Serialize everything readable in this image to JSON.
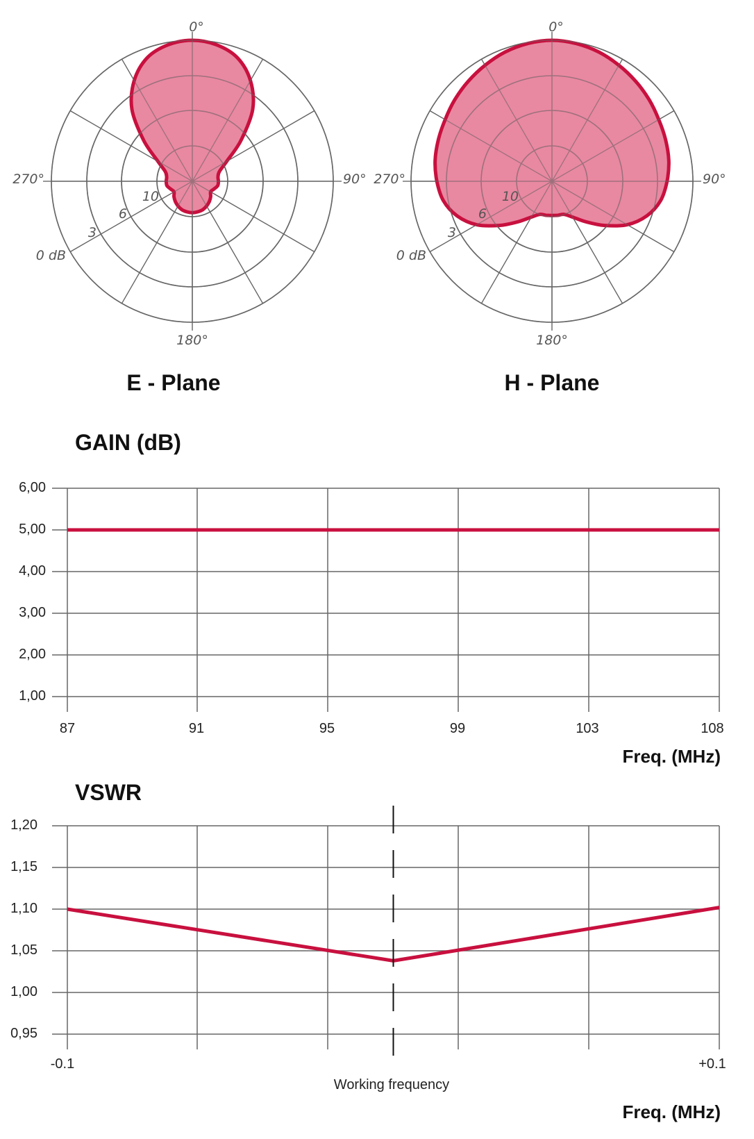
{
  "colors": {
    "pattern": "#c8103e",
    "pattern_fill": "#e8829c",
    "grid": "#666666"
  },
  "chart_data": [
    {
      "type": "polar",
      "title": "E - Plane",
      "angle_labels": [
        "0°",
        "90°",
        "180°",
        "270°"
      ],
      "radial_labels": [
        "0 dB",
        "3",
        "6",
        "10"
      ],
      "radial_levels_db": [
        0,
        -3,
        -6,
        -10
      ],
      "angle_deg": [
        0,
        10,
        20,
        30,
        40,
        50,
        60,
        70,
        80,
        90,
        100,
        110,
        120,
        130,
        140,
        150,
        160,
        170,
        180,
        190,
        200,
        210,
        220,
        230,
        240,
        250,
        260,
        270,
        280,
        290,
        300,
        310,
        320,
        330,
        340,
        350
      ],
      "gain_db": [
        0,
        -0.2,
        -0.8,
        -2.1,
        -4.0,
        -6.8,
        -9.5,
        -11.8,
        -12.6,
        -12.6,
        -12.7,
        -13.5,
        -14.0,
        -13.2,
        -12.5,
        -11.9,
        -11.4,
        -11.2,
        -11.1,
        -11.2,
        -11.4,
        -11.9,
        -12.5,
        -13.2,
        -14.0,
        -13.5,
        -12.7,
        -12.6,
        -12.6,
        -11.8,
        -9.5,
        -6.8,
        -4.0,
        -2.1,
        -0.8,
        -0.2
      ]
    },
    {
      "type": "polar",
      "title": "H - Plane",
      "angle_labels": [
        "0°",
        "90°",
        "180°",
        "270°"
      ],
      "radial_labels": [
        "0 dB",
        "3",
        "6",
        "10"
      ],
      "radial_levels_db": [
        0,
        -3,
        -6,
        -10
      ],
      "angle_deg": [
        0,
        10,
        20,
        30,
        40,
        50,
        60,
        70,
        80,
        90,
        100,
        110,
        120,
        130,
        140,
        150,
        160,
        170,
        180,
        190,
        200,
        210,
        220,
        230,
        240,
        250,
        260,
        270,
        280,
        290,
        300,
        310,
        320,
        330,
        340,
        350
      ],
      "gain_db": [
        0,
        -0.1,
        -0.3,
        -0.6,
        -0.9,
        -1.2,
        -1.5,
        -1.7,
        -1.9,
        -2.2,
        -2.6,
        -3.4,
        -4.6,
        -6.2,
        -8.0,
        -9.3,
        -10.0,
        -10.2,
        -10.3,
        -10.2,
        -10.0,
        -9.3,
        -8.0,
        -6.2,
        -4.6,
        -3.4,
        -2.6,
        -2.2,
        -1.9,
        -1.7,
        -1.5,
        -1.2,
        -0.9,
        -0.6,
        -0.3,
        -0.1
      ]
    },
    {
      "type": "line",
      "title": "GAIN (dB)",
      "xlabel": "Freq. (MHz)",
      "x_ticks": [
        "87",
        "91",
        "95",
        "99",
        "103",
        "108"
      ],
      "y_ticks": [
        "6,00",
        "5,00",
        "4,00",
        "3,00",
        "2,00",
        "1,00"
      ],
      "ylim": [
        1,
        6
      ],
      "xlim": [
        87,
        108
      ],
      "grid": true,
      "series": [
        {
          "x": [
            87,
            108
          ],
          "values": [
            5.0,
            5.0
          ]
        }
      ]
    },
    {
      "type": "line",
      "title": "VSWR",
      "xlabel": "Freq. (MHz)",
      "x_ticks": [
        "-0.1",
        "+0.1"
      ],
      "center_label": "Working frequency",
      "y_ticks": [
        "1,20",
        "1,15",
        "1,10",
        "1,05",
        "1,00",
        "0,95"
      ],
      "ylim": [
        0.95,
        1.2
      ],
      "xlim": [
        -0.1,
        0.1
      ],
      "grid": true,
      "series": [
        {
          "x": [
            -0.1,
            0.0,
            0.1
          ],
          "values": [
            1.1,
            1.038,
            1.102
          ]
        }
      ]
    }
  ]
}
